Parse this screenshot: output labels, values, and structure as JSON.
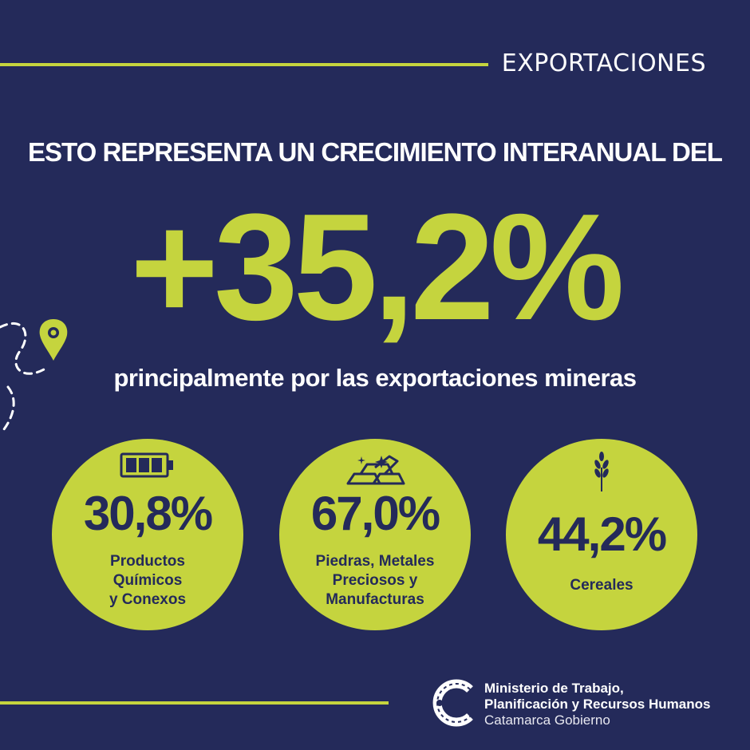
{
  "header": {
    "section_title": "EXPORTACIONES"
  },
  "main": {
    "headline": "ESTO REPRESENTA UN CRECIMIENTO INTERANUAL DEL",
    "big_value": "+35,2%",
    "subheadline": "principalmente por las exportaciones mineras"
  },
  "stats": [
    {
      "value": "30,8%",
      "label_lines": [
        "Productos",
        "Químicos",
        "y Conexos"
      ],
      "icon": "battery-icon"
    },
    {
      "value": "67,0%",
      "label_lines": [
        "Piedras, Metales",
        "Preciosos y",
        "Manufacturas"
      ],
      "icon": "gold-bars-icon"
    },
    {
      "value": "44,2%",
      "label_lines": [
        "Cereales"
      ],
      "icon": "wheat-icon"
    }
  ],
  "footer": {
    "org_line1": "Ministerio de Trabajo,",
    "org_line2": "Planificación y Recursos Humanos",
    "org_line3": "Catamarca Gobierno"
  },
  "colors": {
    "background": "#242a5a",
    "accent": "#c5d43e",
    "text": "#ffffff"
  }
}
